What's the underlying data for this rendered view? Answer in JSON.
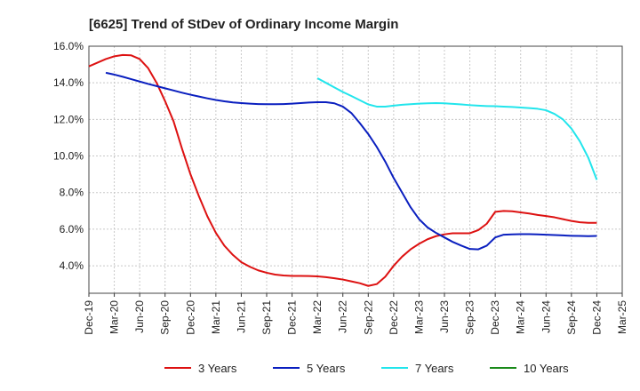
{
  "chart_data": {
    "type": "line",
    "title": "[6625]  Trend of StDev of Ordinary Income Margin",
    "xlabel": "",
    "ylabel": "",
    "ylim": [
      2.5,
      16.0
    ],
    "y_ticks": [
      "4.0%",
      "6.0%",
      "8.0%",
      "10.0%",
      "12.0%",
      "14.0%",
      "16.0%"
    ],
    "y_tick_values": [
      4,
      6,
      8,
      10,
      12,
      14,
      16
    ],
    "x_ticks": [
      "Dec-19",
      "Mar-20",
      "Jun-20",
      "Sep-20",
      "Dec-20",
      "Mar-21",
      "Jun-21",
      "Sep-21",
      "Dec-21",
      "Mar-22",
      "Jun-22",
      "Sep-22",
      "Dec-22",
      "Mar-23",
      "Jun-23",
      "Sep-23",
      "Dec-23",
      "Mar-24",
      "Jun-24",
      "Sep-24",
      "Dec-24",
      "Mar-25"
    ],
    "grid": true,
    "legend_position": "bottom",
    "series": [
      {
        "name": "3 Years",
        "color": "#dd1111",
        "x": [
          "Dec-19",
          "Jan-20",
          "Feb-20",
          "Mar-20",
          "Apr-20",
          "May-20",
          "Jun-20",
          "Jul-20",
          "Aug-20",
          "Sep-20",
          "Oct-20",
          "Nov-20",
          "Dec-20",
          "Jan-21",
          "Feb-21",
          "Mar-21",
          "Apr-21",
          "May-21",
          "Jun-21",
          "Jul-21",
          "Aug-21",
          "Sep-21",
          "Oct-21",
          "Nov-21",
          "Dec-21",
          "Jan-22",
          "Feb-22",
          "Mar-22",
          "Apr-22",
          "May-22",
          "Jun-22",
          "Jul-22",
          "Aug-22",
          "Sep-22",
          "Oct-22",
          "Nov-22",
          "Dec-22",
          "Jan-23",
          "Feb-23",
          "Mar-23",
          "Apr-23",
          "May-23",
          "Jun-23",
          "Jul-23",
          "Aug-23",
          "Sep-23",
          "Oct-23",
          "Nov-23",
          "Dec-23",
          "Jan-24",
          "Feb-24",
          "Mar-24",
          "Apr-24",
          "May-24",
          "Jun-24",
          "Jul-24",
          "Aug-24",
          "Sep-24",
          "Oct-24",
          "Nov-24",
          "Dec-24"
        ],
        "values": [
          14.9,
          15.1,
          15.3,
          15.45,
          15.52,
          15.5,
          15.3,
          14.8,
          14.0,
          13.0,
          11.9,
          10.4,
          9.0,
          7.8,
          6.7,
          5.8,
          5.1,
          4.6,
          4.2,
          3.95,
          3.75,
          3.62,
          3.52,
          3.47,
          3.45,
          3.45,
          3.44,
          3.42,
          3.38,
          3.32,
          3.25,
          3.15,
          3.05,
          2.9,
          3.0,
          3.4,
          4.0,
          4.5,
          4.9,
          5.2,
          5.45,
          5.62,
          5.72,
          5.78,
          5.78,
          5.78,
          5.95,
          6.3,
          6.95,
          7.0,
          6.98,
          6.92,
          6.86,
          6.78,
          6.72,
          6.65,
          6.55,
          6.45,
          6.38,
          6.35,
          6.35
        ]
      },
      {
        "name": "5 Years",
        "color": "#0a1fbf",
        "x": [
          "Dec-19",
          "Jan-20",
          "Feb-20",
          "Mar-20",
          "Apr-20",
          "May-20",
          "Jun-20",
          "Jul-20",
          "Aug-20",
          "Sep-20",
          "Oct-20",
          "Nov-20",
          "Dec-20",
          "Jan-21",
          "Feb-21",
          "Mar-21",
          "Apr-21",
          "May-21",
          "Jun-21",
          "Jul-21",
          "Aug-21",
          "Sep-21",
          "Oct-21",
          "Nov-21",
          "Dec-21",
          "Jan-22",
          "Feb-22",
          "Mar-22",
          "Apr-22",
          "May-22",
          "Jun-22",
          "Jul-22",
          "Aug-22",
          "Sep-22",
          "Oct-22",
          "Nov-22",
          "Dec-22",
          "Jan-23",
          "Feb-23",
          "Mar-23",
          "Apr-23",
          "May-23",
          "Jun-23",
          "Jul-23",
          "Aug-23",
          "Sep-23",
          "Oct-23",
          "Nov-23",
          "Dec-23",
          "Jan-24",
          "Feb-24",
          "Mar-24",
          "Apr-24",
          "May-24",
          "Jun-24",
          "Jul-24",
          "Aug-24",
          "Sep-24",
          "Oct-24",
          "Nov-24",
          "Dec-24"
        ],
        "values": [
          null,
          null,
          14.55,
          14.45,
          14.33,
          14.2,
          14.07,
          13.94,
          13.82,
          13.7,
          13.58,
          13.46,
          13.35,
          13.25,
          13.15,
          13.06,
          12.99,
          12.93,
          12.89,
          12.86,
          12.84,
          12.83,
          12.83,
          12.84,
          12.86,
          12.89,
          12.92,
          12.94,
          12.94,
          12.88,
          12.7,
          12.35,
          11.8,
          11.2,
          10.5,
          9.7,
          8.8,
          8.0,
          7.2,
          6.55,
          6.1,
          5.8,
          5.55,
          5.3,
          5.1,
          4.92,
          4.9,
          5.1,
          5.55,
          5.7,
          5.72,
          5.73,
          5.73,
          5.72,
          5.7,
          5.68,
          5.66,
          5.64,
          5.63,
          5.62,
          5.63
        ]
      },
      {
        "name": "7 Years",
        "color": "#22e5ec",
        "x": [
          "Mar-22",
          "Apr-22",
          "May-22",
          "Jun-22",
          "Jul-22",
          "Aug-22",
          "Sep-22",
          "Oct-22",
          "Nov-22",
          "Dec-22",
          "Jan-23",
          "Feb-23",
          "Mar-23",
          "Apr-23",
          "May-23",
          "Jun-23",
          "Jul-23",
          "Aug-23",
          "Sep-23",
          "Oct-23",
          "Nov-23",
          "Dec-23",
          "Jan-24",
          "Feb-24",
          "Mar-24",
          "Apr-24",
          "May-24",
          "Jun-24",
          "Jul-24",
          "Aug-24",
          "Sep-24",
          "Oct-24",
          "Nov-24",
          "Dec-24"
        ],
        "values": [
          14.25,
          14.0,
          13.75,
          13.5,
          13.28,
          13.05,
          12.82,
          12.7,
          12.7,
          12.75,
          12.8,
          12.83,
          12.86,
          12.88,
          12.89,
          12.88,
          12.85,
          12.82,
          12.78,
          12.75,
          12.73,
          12.72,
          12.7,
          12.68,
          12.65,
          12.62,
          12.58,
          12.5,
          12.3,
          12.0,
          11.5,
          10.8,
          9.9,
          8.7
        ]
      },
      {
        "name": "10 Years",
        "color": "#1a8a1a",
        "x": [],
        "values": []
      }
    ]
  }
}
